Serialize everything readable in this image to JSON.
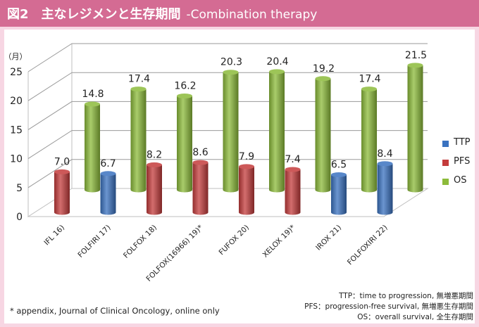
{
  "header": {
    "title": "図2　主なレジメンと生存期間",
    "subtitle": "-Combination therapy"
  },
  "colors": {
    "header_bg": "#d46b93",
    "page_bg": "#f7d6e3",
    "TTP": "#3a72c0",
    "PFS": "#c43c3c",
    "OS": "#8cbb3a"
  },
  "chart_data": {
    "type": "bar",
    "style": "3d-cylinder",
    "ylabel": "（月）",
    "ylim": [
      0,
      25
    ],
    "yticks": [
      "0",
      "5",
      "10",
      "15",
      "20",
      "25"
    ],
    "categories": [
      "IFL 16)",
      "FOLFIRI 17)",
      "FOLFOX 18)",
      "FOLFOX(16966) 19)*",
      "FUFOX 20)",
      "XELOX 19)*",
      "IROX 21)",
      "FOLFOXIRI 22)"
    ],
    "front_series": [
      {
        "category": "IFL 16)",
        "series": "PFS",
        "value": 7.0,
        "label": "7.0"
      },
      {
        "category": "FOLFIRI 17)",
        "series": "TTP",
        "value": 6.7,
        "label": "6.7"
      },
      {
        "category": "FOLFOX 18)",
        "series": "PFS",
        "value": 8.2,
        "label": "8.2"
      },
      {
        "category": "FOLFOX(16966) 19)*",
        "series": "PFS",
        "value": 8.6,
        "label": "8.6"
      },
      {
        "category": "FUFOX 20)",
        "series": "PFS",
        "value": 7.9,
        "label": "7.9"
      },
      {
        "category": "XELOX 19)*",
        "series": "PFS",
        "value": 7.4,
        "label": "7.4"
      },
      {
        "category": "IROX 21)",
        "series": "TTP",
        "value": 6.5,
        "label": "6.5"
      },
      {
        "category": "FOLFOXIRI 22)",
        "series": "TTP",
        "value": 8.4,
        "label": "8.4"
      }
    ],
    "back_series": {
      "name": "OS",
      "values": [
        14.8,
        17.4,
        16.2,
        20.3,
        20.4,
        19.2,
        17.4,
        21.5
      ],
      "labels": [
        "14.8",
        "17.4",
        "16.2",
        "20.3",
        "20.4",
        "19.2",
        "17.4",
        "21.5"
      ]
    },
    "legend": [
      "TTP",
      "PFS",
      "OS"
    ],
    "legend_position": "right",
    "grid": true
  },
  "legend": {
    "ttp": "TTP",
    "pfs": "PFS",
    "os": "OS"
  },
  "notes": {
    "appendix": "* appendix, Journal of Clinical Oncology, online only",
    "ttp_def": "TTP：time to progression, 無増悪期間",
    "pfs_def": "PFS：progression-free survival, 無増悪生存期間",
    "os_def": "OS：overall survival, 全生存期間"
  }
}
